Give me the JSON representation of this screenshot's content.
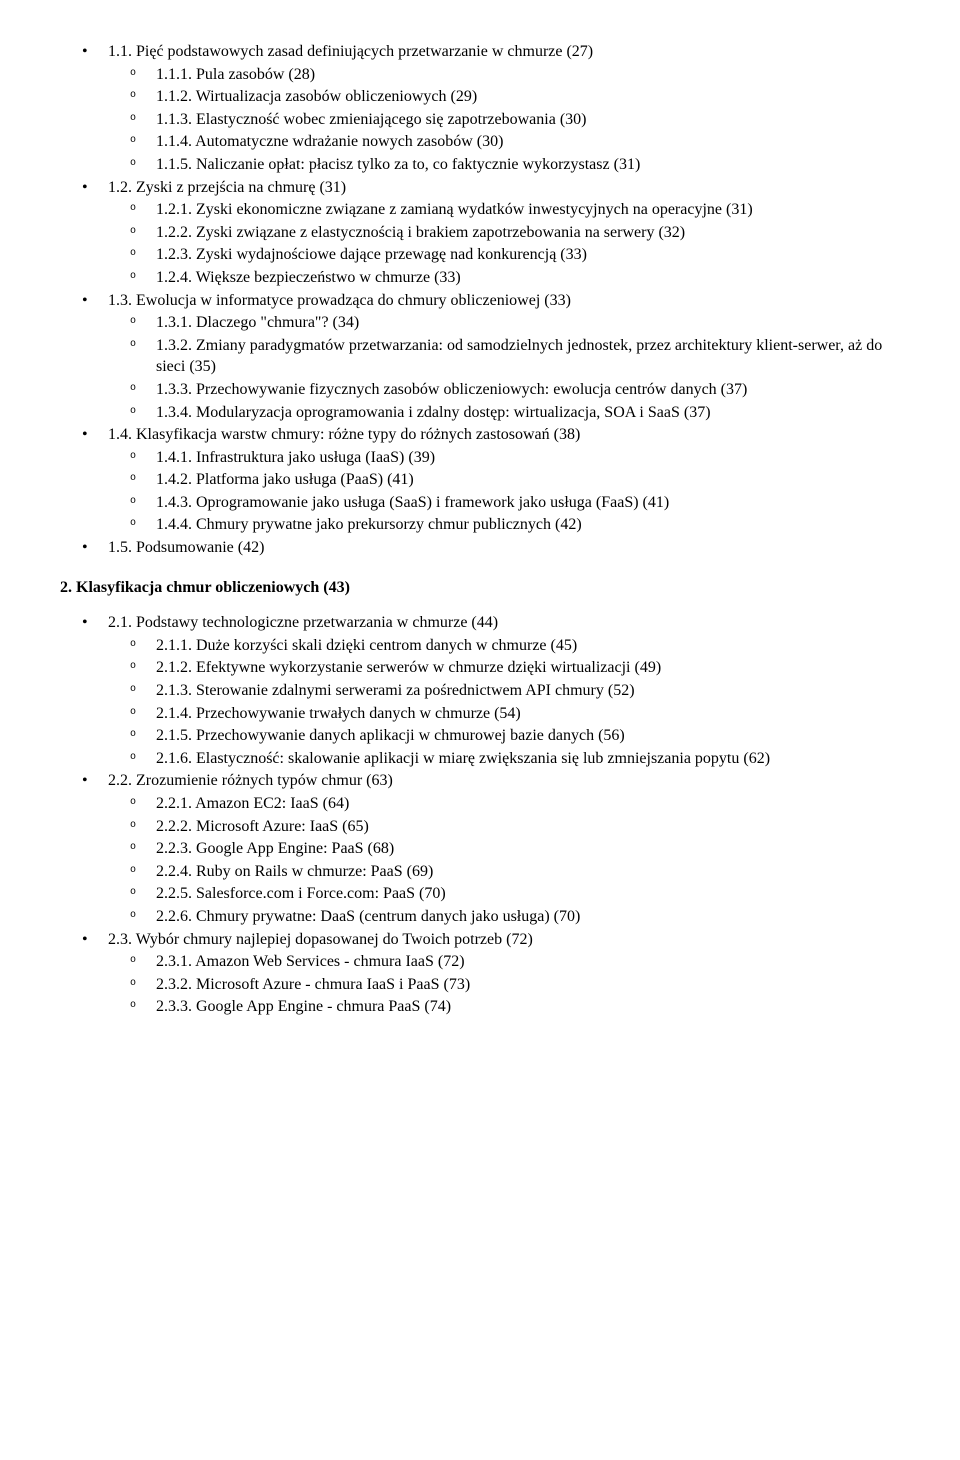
{
  "toc1": {
    "i1_1": "1.1. Pięć podstawowych zasad definiujących przetwarzanie w chmurze (27)",
    "i1_1_1": "1.1.1. Pula zasobów (28)",
    "i1_1_2": "1.1.2. Wirtualizacja zasobów obliczeniowych (29)",
    "i1_1_3": "1.1.3. Elastyczność wobec zmieniającego się zapotrzebowania (30)",
    "i1_1_4": "1.1.4. Automatyczne wdrażanie nowych zasobów (30)",
    "i1_1_5": "1.1.5. Naliczanie opłat: płacisz tylko za to, co faktycznie wykorzystasz (31)",
    "i1_2": "1.2. Zyski z przejścia na chmurę (31)",
    "i1_2_1": "1.2.1. Zyski ekonomiczne związane z zamianą wydatków inwestycyjnych na operacyjne (31)",
    "i1_2_2": "1.2.2. Zyski związane z elastycznością i brakiem zapotrzebowania na serwery (32)",
    "i1_2_3": "1.2.3. Zyski wydajnościowe dające przewagę nad konkurencją (33)",
    "i1_2_4": "1.2.4. Większe bezpieczeństwo w chmurze (33)",
    "i1_3": "1.3. Ewolucja w informatyce prowadząca do chmury obliczeniowej (33)",
    "i1_3_1": "1.3.1. Dlaczego \"chmura\"? (34)",
    "i1_3_2": "1.3.2. Zmiany paradygmatów przetwarzania: od samodzielnych jednostek, przez architektury klient-serwer, aż do sieci (35)",
    "i1_3_3": "1.3.3. Przechowywanie fizycznych zasobów obliczeniowych: ewolucja centrów danych (37)",
    "i1_3_4": "1.3.4. Modularyzacja oprogramowania i zdalny dostęp: wirtualizacja, SOA i SaaS (37)",
    "i1_4": "1.4. Klasyfikacja warstw chmury: różne typy do różnych zastosowań (38)",
    "i1_4_1": "1.4.1. Infrastruktura jako usługa (IaaS) (39)",
    "i1_4_2": "1.4.2. Platforma jako usługa (PaaS) (41)",
    "i1_4_3": "1.4.3. Oprogramowanie jako usługa (SaaS) i framework jako usługa (FaaS) (41)",
    "i1_4_4": "1.4.4. Chmury prywatne jako prekursorzy chmur publicznych (42)",
    "i1_5": "1.5. Podsumowanie (42)"
  },
  "section2_title": "2. Klasyfikacja chmur obliczeniowych (43)",
  "toc2": {
    "i2_1": "2.1. Podstawy technologiczne przetwarzania w chmurze (44)",
    "i2_1_1": "2.1.1. Duże korzyści skali dzięki centrom danych w chmurze (45)",
    "i2_1_2": "2.1.2. Efektywne wykorzystanie serwerów w chmurze dzięki wirtualizacji (49)",
    "i2_1_3": "2.1.3. Sterowanie zdalnymi serwerami za pośrednictwem API chmury (52)",
    "i2_1_4": "2.1.4. Przechowywanie trwałych danych w chmurze (54)",
    "i2_1_5": "2.1.5. Przechowywanie danych aplikacji w chmurowej bazie danych (56)",
    "i2_1_6": "2.1.6. Elastyczność: skalowanie aplikacji w miarę zwiększania się lub zmniejszania popytu (62)",
    "i2_2": "2.2. Zrozumienie różnych typów chmur (63)",
    "i2_2_1": "2.2.1. Amazon EC2: IaaS (64)",
    "i2_2_2": "2.2.2. Microsoft Azure: IaaS (65)",
    "i2_2_3": "2.2.3. Google App Engine: PaaS (68)",
    "i2_2_4": "2.2.4. Ruby on Rails w chmurze: PaaS (69)",
    "i2_2_5": "2.2.5. Salesforce.com i Force.com: PaaS (70)",
    "i2_2_6": "2.2.6. Chmury prywatne: DaaS (centrum danych jako usługa) (70)",
    "i2_3": "2.3. Wybór chmury najlepiej dopasowanej do Twoich potrzeb (72)",
    "i2_3_1": "2.3.1. Amazon Web Services - chmura IaaS (72)",
    "i2_3_2": "2.3.2. Microsoft Azure - chmura IaaS i PaaS (73)",
    "i2_3_3": "2.3.3. Google App Engine - chmura PaaS (74)"
  }
}
